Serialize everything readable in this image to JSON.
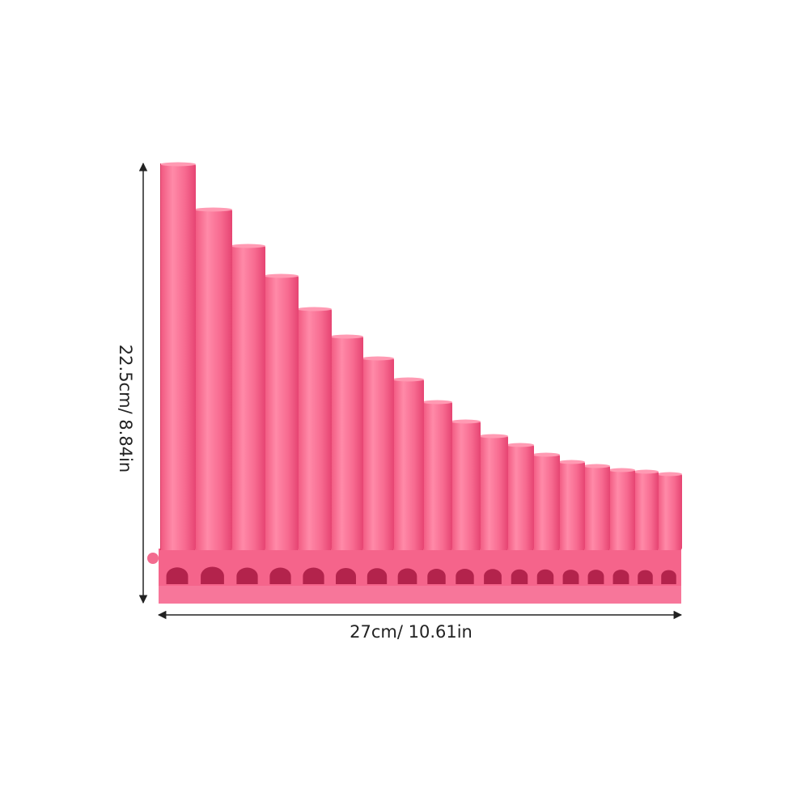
{
  "dimensions": {
    "height": "22.5cm/ 8.84in",
    "width": "27cm/ 10.61in"
  }
}
